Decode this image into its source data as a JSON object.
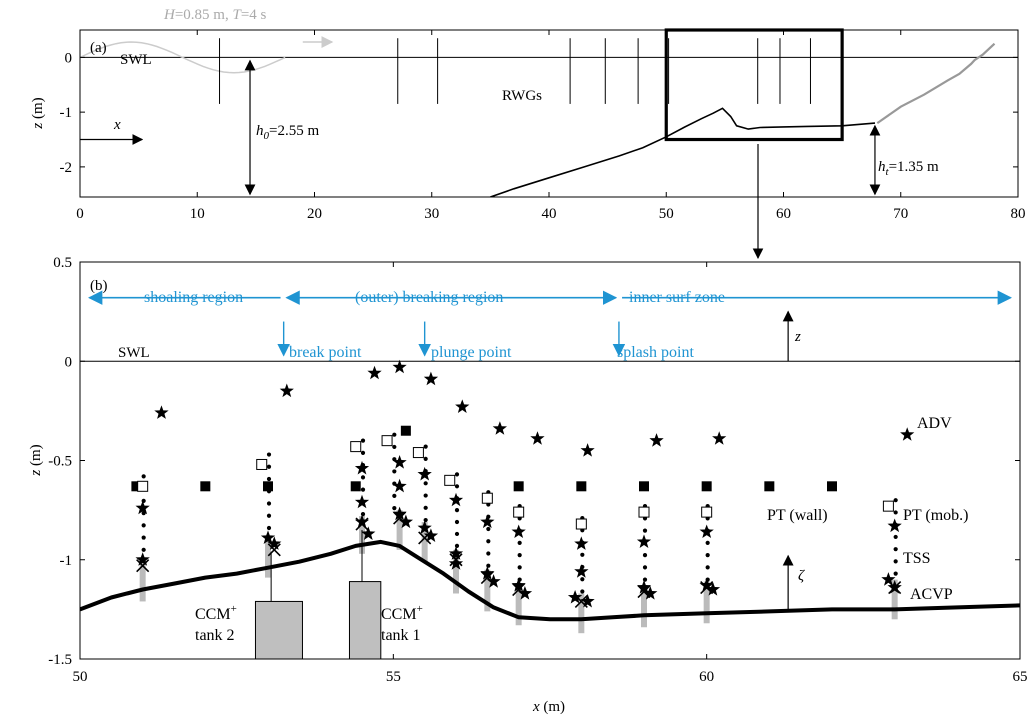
{
  "colors": {
    "ink": "#000000",
    "gray": "#999999",
    "light": "#bbbbbb",
    "wave": "#cccccc",
    "blue": "#1f94d2",
    "fill": "#bfbfbf"
  },
  "chart_data": [
    {
      "panel": "a",
      "type": "line",
      "panel_label": "(a)",
      "wave_label": "H=0.85 m, T=4 s",
      "xlabel": "",
      "ylabel": "z (m)",
      "xlim": [
        0,
        80
      ],
      "ylim": [
        -2.55,
        0.5
      ],
      "xticks": [
        0,
        10,
        20,
        30,
        40,
        50,
        60,
        70,
        80
      ],
      "yticks": [
        0,
        -1,
        -2
      ],
      "swl_label": "SWL",
      "rwg_label": "RWGs",
      "x_arrow_label": "x",
      "h0_label": "h0=2.55 m",
      "ht_label": "ht=1.35 m",
      "rwg_x": [
        11.9,
        27.1,
        30.5,
        41.8,
        44.8,
        47.6,
        50.2,
        57.8,
        59.7,
        62.3
      ],
      "bed": {
        "x": [
          35,
          37,
          40,
          43,
          46,
          48,
          50,
          51.5,
          53,
          54,
          54.8,
          55.5,
          56,
          57,
          58,
          60,
          62,
          65,
          67.8
        ],
        "y": [
          -2.55,
          -2.4,
          -2.2,
          -2.0,
          -1.8,
          -1.65,
          -1.45,
          -1.28,
          -1.12,
          -1.02,
          -0.93,
          -1.08,
          -1.25,
          -1.31,
          -1.28,
          -1.27,
          -1.26,
          -1.25,
          -1.2
        ]
      },
      "beach": {
        "x": [
          68,
          70,
          72,
          74,
          75,
          76,
          76.3,
          77,
          78
        ],
        "y": [
          -1.2,
          -0.9,
          -0.68,
          -0.42,
          -0.3,
          -0.12,
          -0.05,
          0.05,
          0.25
        ]
      },
      "zoom_box": {
        "x": [
          50,
          65
        ],
        "y": [
          -1.5,
          0.5
        ]
      }
    },
    {
      "panel": "b",
      "type": "scatter",
      "panel_label": "(b)",
      "xlabel": "x (m)",
      "ylabel": "z (m)",
      "xlim": [
        50,
        65
      ],
      "ylim": [
        -1.5,
        0.5
      ],
      "xticks": [
        50,
        55,
        60,
        65
      ],
      "yticks": [
        0.5,
        0,
        -0.5,
        -1,
        -1.5
      ],
      "ytick_labels": [
        "0.5",
        "0",
        "-0.5",
        "-1",
        "-1.5"
      ],
      "swl_label": "SWL",
      "regions": [
        "shoaling region",
        "(outer) breaking region",
        "inner surf zone"
      ],
      "points_labels": [
        "break point",
        "plunge point",
        "splash point"
      ],
      "z_label": "z",
      "zeta_label": "ζ",
      "legend_labels": {
        "adv": "ADV",
        "pt_wall": "PT (wall)",
        "pt_mob": "PT (mob.)",
        "tss": "TSS",
        "acvp": "ACVP"
      },
      "tank2_label": [
        "CCM+",
        "tank 2"
      ],
      "tank1_label": [
        "CCM+",
        "tank 1"
      ],
      "bed": {
        "x": [
          50,
          50.5,
          51,
          51.5,
          52,
          52.5,
          53,
          53.5,
          54,
          54.4,
          54.8,
          55.1,
          55.4,
          55.8,
          56.2,
          56.6,
          57,
          57.5,
          58,
          58.5,
          59,
          60,
          61,
          62,
          63,
          64,
          65
        ],
        "y": [
          -1.25,
          -1.19,
          -1.15,
          -1.12,
          -1.09,
          -1.07,
          -1.04,
          -1.01,
          -0.97,
          -0.93,
          -0.91,
          -0.93,
          -0.99,
          -1.07,
          -1.16,
          -1.24,
          -1.29,
          -1.3,
          -1.3,
          -1.29,
          -1.28,
          -1.27,
          -1.26,
          -1.25,
          -1.25,
          -1.24,
          -1.23
        ]
      },
      "adv_stars": [
        {
          "x": 51.3,
          "z": -0.26
        },
        {
          "x": 53.3,
          "z": -0.15
        },
        {
          "x": 54.7,
          "z": -0.06
        },
        {
          "x": 55.1,
          "z": -0.03
        },
        {
          "x": 55.6,
          "z": -0.09
        },
        {
          "x": 56.1,
          "z": -0.23
        },
        {
          "x": 56.7,
          "z": -0.34
        },
        {
          "x": 57.3,
          "z": -0.39
        },
        {
          "x": 58.1,
          "z": -0.45
        },
        {
          "x": 59.2,
          "z": -0.4
        },
        {
          "x": 60.2,
          "z": -0.39
        },
        {
          "x": 63.2,
          "z": -0.37
        },
        {
          "x": 51.0,
          "z": -0.74
        },
        {
          "x": 51.0,
          "z": -1.0
        },
        {
          "x": 53.0,
          "z": -0.89
        },
        {
          "x": 53.1,
          "z": -0.92
        },
        {
          "x": 54.5,
          "z": -0.54
        },
        {
          "x": 54.5,
          "z": -0.71
        },
        {
          "x": 54.5,
          "z": -0.81
        },
        {
          "x": 54.6,
          "z": -0.87
        },
        {
          "x": 55.1,
          "z": -0.51
        },
        {
          "x": 55.1,
          "z": -0.63
        },
        {
          "x": 55.1,
          "z": -0.77
        },
        {
          "x": 55.2,
          "z": -0.81
        },
        {
          "x": 55.5,
          "z": -0.57
        },
        {
          "x": 55.5,
          "z": -0.84
        },
        {
          "x": 55.6,
          "z": -0.88
        },
        {
          "x": 56.0,
          "z": -0.7
        },
        {
          "x": 56.0,
          "z": -0.97
        },
        {
          "x": 56.0,
          "z": -1.02
        },
        {
          "x": 56.5,
          "z": -0.81
        },
        {
          "x": 56.5,
          "z": -1.07
        },
        {
          "x": 56.6,
          "z": -1.11
        },
        {
          "x": 57.0,
          "z": -0.86
        },
        {
          "x": 57.0,
          "z": -1.13
        },
        {
          "x": 57.1,
          "z": -1.17
        },
        {
          "x": 58.0,
          "z": -0.92
        },
        {
          "x": 58.0,
          "z": -1.06
        },
        {
          "x": 57.9,
          "z": -1.19
        },
        {
          "x": 58.1,
          "z": -1.21
        },
        {
          "x": 59.0,
          "z": -0.91
        },
        {
          "x": 59.0,
          "z": -1.14
        },
        {
          "x": 59.1,
          "z": -1.17
        },
        {
          "x": 60.0,
          "z": -0.86
        },
        {
          "x": 60.0,
          "z": -1.13
        },
        {
          "x": 60.1,
          "z": -1.15
        },
        {
          "x": 63.0,
          "z": -0.83
        },
        {
          "x": 62.9,
          "z": -1.1
        },
        {
          "x": 63.0,
          "z": -1.14
        }
      ],
      "pt_wall": [
        {
          "x": 50.9,
          "z": -0.63
        },
        {
          "x": 52.0,
          "z": -0.63
        },
        {
          "x": 53.0,
          "z": -0.63
        },
        {
          "x": 54.4,
          "z": -0.63
        },
        {
          "x": 55.2,
          "z": -0.35
        },
        {
          "x": 57.0,
          "z": -0.63
        },
        {
          "x": 58.0,
          "z": -0.63
        },
        {
          "x": 59.0,
          "z": -0.63
        },
        {
          "x": 60.0,
          "z": -0.63
        },
        {
          "x": 61.0,
          "z": -0.63
        },
        {
          "x": 62.0,
          "z": -0.63
        }
      ],
      "pt_mob": [
        {
          "x": 51.0,
          "z": -0.63
        },
        {
          "x": 52.9,
          "z": -0.52
        },
        {
          "x": 54.4,
          "z": -0.43
        },
        {
          "x": 54.9,
          "z": -0.4
        },
        {
          "x": 55.4,
          "z": -0.46
        },
        {
          "x": 55.9,
          "z": -0.6
        },
        {
          "x": 56.5,
          "z": -0.69
        },
        {
          "x": 57.0,
          "z": -0.76
        },
        {
          "x": 58.0,
          "z": -0.82
        },
        {
          "x": 59.0,
          "z": -0.76
        },
        {
          "x": 60.0,
          "z": -0.76
        },
        {
          "x": 62.9,
          "z": -0.73
        }
      ],
      "acvp": [
        {
          "x": 51.0,
          "z": -1.03
        },
        {
          "x": 53.1,
          "z": -0.95
        },
        {
          "x": 54.5,
          "z": -0.82
        },
        {
          "x": 55.1,
          "z": -0.79
        },
        {
          "x": 55.5,
          "z": -0.89
        },
        {
          "x": 56.0,
          "z": -1.0
        },
        {
          "x": 56.5,
          "z": -1.09
        },
        {
          "x": 57.0,
          "z": -1.15
        },
        {
          "x": 58.0,
          "z": -1.21
        },
        {
          "x": 59.0,
          "z": -1.16
        },
        {
          "x": 60.0,
          "z": -1.14
        },
        {
          "x": 63.0,
          "z": -1.14
        }
      ],
      "tss_columns": [
        {
          "x": 51.0,
          "top": -0.58,
          "bottom": -0.95
        },
        {
          "x": 53.0,
          "top": -0.47,
          "bottom": -0.84
        },
        {
          "x": 54.5,
          "top": -0.4,
          "bottom": -0.77
        },
        {
          "x": 55.0,
          "top": -0.37,
          "bottom": -0.74
        },
        {
          "x": 55.5,
          "top": -0.43,
          "bottom": -0.8
        },
        {
          "x": 56.0,
          "top": -0.57,
          "bottom": -0.93
        },
        {
          "x": 56.5,
          "top": -0.66,
          "bottom": -1.03
        },
        {
          "x": 57.0,
          "top": -0.73,
          "bottom": -1.1
        },
        {
          "x": 58.0,
          "top": -0.79,
          "bottom": -1.16
        },
        {
          "x": 59.0,
          "top": -0.73,
          "bottom": -1.1
        },
        {
          "x": 60.0,
          "top": -0.73,
          "bottom": -1.1
        },
        {
          "x": 63.0,
          "top": -0.7,
          "bottom": -1.07
        }
      ],
      "bars": [
        {
          "x": 51.0,
          "top": -1.0,
          "bottom": -1.21
        },
        {
          "x": 53.0,
          "top": -0.9,
          "bottom": -1.09
        },
        {
          "x": 54.5,
          "top": -0.78,
          "bottom": -0.97
        },
        {
          "x": 55.1,
          "top": -0.75,
          "bottom": -0.95
        },
        {
          "x": 55.5,
          "top": -0.81,
          "bottom": -1.01
        },
        {
          "x": 56.0,
          "top": -0.95,
          "bottom": -1.17
        },
        {
          "x": 56.5,
          "top": -1.05,
          "bottom": -1.26
        },
        {
          "x": 57.0,
          "top": -1.12,
          "bottom": -1.33
        },
        {
          "x": 58.0,
          "top": -1.17,
          "bottom": -1.37
        },
        {
          "x": 59.0,
          "top": -1.13,
          "bottom": -1.34
        },
        {
          "x": 60.0,
          "top": -1.11,
          "bottom": -1.32
        },
        {
          "x": 63.0,
          "top": -1.1,
          "bottom": -1.3
        }
      ],
      "tank2": {
        "x0": 52.8,
        "x1": 53.55,
        "top": -1.21,
        "stem_top": -0.96,
        "stem_x": 53.05
      },
      "tank1": {
        "x0": 54.3,
        "x1": 54.8,
        "top": -1.11,
        "stem_top": -0.85,
        "stem_x": 54.5
      }
    }
  ]
}
